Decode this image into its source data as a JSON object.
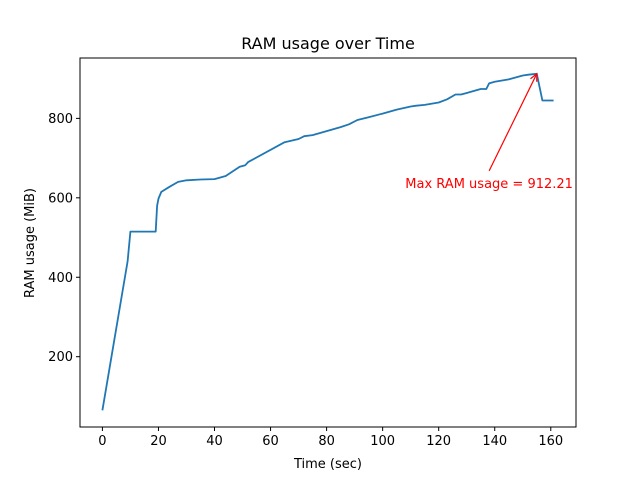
{
  "chart_data": {
    "type": "line",
    "title": "RAM usage over Time",
    "xlabel": "Time (sec)",
    "ylabel": "RAM usage (MiB)",
    "xlim": [
      -8,
      169
    ],
    "ylim": [
      23,
      952
    ],
    "xticks": [
      0,
      20,
      40,
      60,
      80,
      100,
      120,
      140,
      160
    ],
    "yticks": [
      200,
      400,
      600,
      800
    ],
    "grid": false,
    "series": [
      {
        "color": "#1f77b4",
        "x": [
          0,
          3,
          6,
          9,
          10,
          19,
          19.5,
          20,
          21,
          24,
          27,
          30,
          35,
          40,
          44,
          49,
          51,
          52,
          65,
          70,
          72,
          75,
          80,
          85,
          88,
          91,
          95,
          100,
          105,
          110,
          112,
          115,
          120,
          123,
          126,
          128,
          130,
          135,
          137,
          138,
          140,
          145,
          150,
          152,
          155,
          157,
          161
        ],
        "y": [
          65,
          190,
          315,
          440,
          515,
          515,
          580,
          598,
          615,
          628,
          640,
          644,
          646,
          647,
          655,
          678,
          682,
          690,
          740,
          748,
          755,
          758,
          768,
          778,
          785,
          796,
          803,
          812,
          822,
          830,
          832,
          834,
          840,
          848,
          860,
          860,
          864,
          874,
          874,
          888,
          892,
          898,
          908,
          910,
          912.21,
          845,
          845
        ]
      }
    ],
    "annotations": [
      {
        "text": "Max RAM usage = 912.21",
        "color": "#ff0000",
        "point": [
          155,
          912.21
        ],
        "text_anchor_data": [
          138,
          625
        ]
      }
    ]
  }
}
